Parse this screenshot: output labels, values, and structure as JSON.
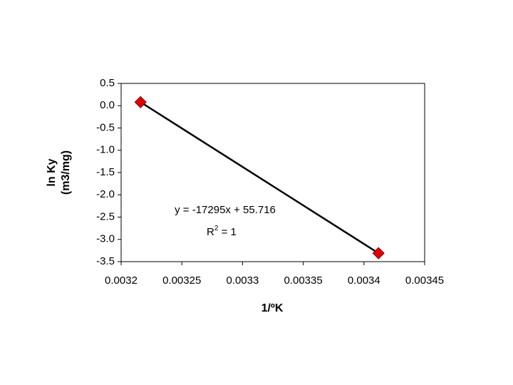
{
  "chart_data": {
    "type": "scatter",
    "x_label": "1/ºK",
    "y_label": [
      "ln Ky",
      "(m3/mg)"
    ],
    "annotations": {
      "equation": "y = -17295x + 55.716",
      "r_squared": {
        "base": "R",
        "sup": "2",
        "rest": " = 1"
      }
    },
    "series": [
      {
        "color": "#e00000",
        "line_color": "#000000",
        "x": [
          0.003216,
          0.003412
        ],
        "values": [
          0.08,
          -3.31
        ]
      }
    ],
    "xlim": [
      0.0032,
      0.00345
    ],
    "xticks": [
      0.0032,
      0.00325,
      0.0033,
      0.00335,
      0.0034,
      0.00345
    ],
    "ylim": [
      -3.5,
      0.5
    ],
    "yticks": [
      {
        "value": -3.5,
        "label": "-3.5"
      },
      {
        "value": -3,
        "label": "-3.0"
      },
      {
        "value": -2.5,
        "label": "-2.5"
      },
      {
        "value": -2,
        "label": "-2.0"
      },
      {
        "value": -1.5,
        "label": "-1.5"
      },
      {
        "value": -1,
        "label": "-1.0"
      },
      {
        "value": -0.5,
        "label": "-0.5"
      },
      {
        "value": 0,
        "label": "0.0"
      },
      {
        "value": 0.5,
        "label": "0.5"
      }
    ]
  }
}
